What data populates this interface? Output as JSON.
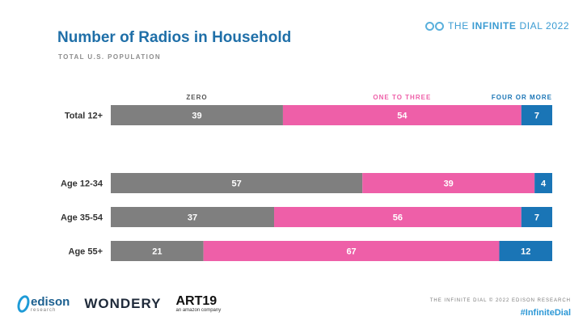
{
  "header": {
    "title": "Number of Radios in Household",
    "subtitle": "TOTAL U.S. POPULATION",
    "brand_prefix": "THE ",
    "brand_bold": "INFINITE",
    "brand_suffix": " DIAL 2022"
  },
  "footer": {
    "edison_name": "edison",
    "edison_sub": "research",
    "wondery": "WONDERY",
    "art19": "ART19",
    "art19_sub": "an amazon company",
    "credit": "THE INFINITE DIAL  © 2022 EDISON RESEARCH",
    "hashtag": "#InfiniteDial"
  },
  "chart_data": {
    "type": "bar",
    "orientation": "horizontal",
    "stacked": true,
    "categories": [
      "Total 12+",
      "Age 12-34",
      "Age 35-54",
      "Age 55+"
    ],
    "series": [
      {
        "name": "ZERO",
        "color": "#7f7f7f",
        "values": [
          39,
          57,
          37,
          21
        ]
      },
      {
        "name": "ONE TO THREE",
        "color": "#ee5fa8",
        "values": [
          54,
          39,
          56,
          67
        ]
      },
      {
        "name": "FOUR OR MORE",
        "color": "#1a75b6",
        "values": [
          7,
          4,
          7,
          12
        ]
      }
    ],
    "legend_colors": [
      "#555555",
      "#ee5fa8",
      "#1a75b6"
    ],
    "legend_position": "top, aligned over each segment",
    "xlim": [
      0,
      100
    ],
    "grid": false
  }
}
